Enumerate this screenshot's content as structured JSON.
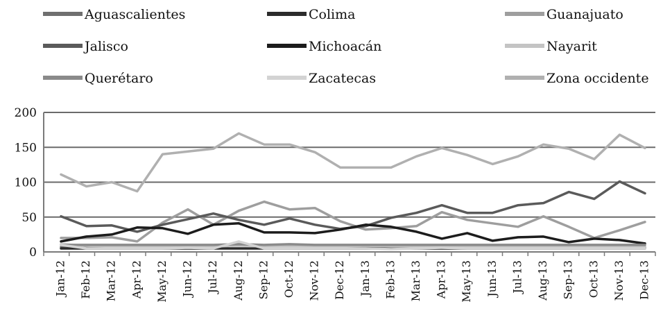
{
  "chart_data": {
    "type": "line",
    "title": "",
    "xlabel": "",
    "ylabel": "",
    "ylim": [
      0,
      200
    ],
    "yticks": [
      0,
      50,
      100,
      150,
      200
    ],
    "ytick_labels": [
      "0",
      "50",
      "100",
      "150",
      "200"
    ],
    "grid": "horizontal",
    "legend_position": "top",
    "categories": [
      "Jan-12",
      "Feb-12",
      "Mar-12",
      "Apr-12",
      "May-12",
      "Jun-12",
      "Jul-12",
      "Aug-12",
      "Sep-12",
      "Oct-12",
      "Nov-12",
      "Dec-12",
      "Jan-13",
      "Feb-13",
      "Mar-13",
      "Apr-13",
      "May-13",
      "Jun-13",
      "Jul-13",
      "Aug-13",
      "Sep-13",
      "Oct-13",
      "Nov-13",
      "Dec-13"
    ],
    "series": [
      {
        "name": "Aguascalientes",
        "color": "#6f6f6f",
        "values": [
          7,
          6,
          6,
          6,
          7,
          7,
          6,
          10,
          7,
          7,
          6,
          7,
          6,
          5,
          6,
          7,
          6,
          6,
          6,
          7,
          7,
          7,
          6,
          7
        ]
      },
      {
        "name": "Colima",
        "color": "#2b2b2b",
        "values": [
          5,
          5,
          5,
          5,
          5,
          5,
          5,
          5,
          5,
          5,
          5,
          5,
          5,
          5,
          5,
          5,
          5,
          5,
          5,
          5,
          5,
          5,
          5,
          5
        ]
      },
      {
        "name": "Guanajuato",
        "color": "#9e9e9e",
        "values": [
          20,
          20,
          21,
          15,
          42,
          61,
          39,
          59,
          72,
          61,
          63,
          44,
          32,
          34,
          37,
          57,
          46,
          41,
          36,
          51,
          36,
          20,
          31,
          43
        ]
      },
      {
        "name": "Jalisco",
        "color": "#5a5a5a",
        "values": [
          51,
          37,
          38,
          29,
          39,
          47,
          55,
          46,
          39,
          48,
          39,
          33,
          37,
          49,
          56,
          67,
          56,
          56,
          67,
          70,
          86,
          76,
          101,
          84
        ]
      },
      {
        "name": "Michoacán",
        "color": "#1c1c1c",
        "values": [
          15,
          22,
          25,
          35,
          34,
          26,
          39,
          41,
          28,
          28,
          27,
          32,
          39,
          36,
          29,
          19,
          27,
          16,
          21,
          22,
          14,
          19,
          17,
          12
        ]
      },
      {
        "name": "Nayarit",
        "color": "#c4c4c4",
        "values": [
          11,
          9,
          8,
          7,
          8,
          8,
          8,
          9,
          8,
          8,
          8,
          8,
          9,
          8,
          8,
          8,
          8,
          8,
          8,
          8,
          8,
          8,
          8,
          8
        ]
      },
      {
        "name": "Querétaro",
        "color": "#8a8a8a",
        "values": [
          10,
          10,
          10,
          10,
          10,
          10,
          10,
          11,
          10,
          11,
          10,
          10,
          10,
          10,
          10,
          10,
          10,
          10,
          10,
          10,
          10,
          10,
          10,
          10
        ]
      },
      {
        "name": "Zacatecas",
        "color": "#d3d3d3",
        "values": [
          10,
          5,
          5,
          5,
          5,
          6,
          5,
          15,
          5,
          5,
          5,
          5,
          5,
          4,
          5,
          6,
          5,
          5,
          5,
          5,
          5,
          5,
          5,
          5
        ]
      },
      {
        "name": "Zona occidente",
        "color": "#b0b0b0",
        "values": [
          111,
          94,
          100,
          87,
          140,
          144,
          148,
          170,
          154,
          154,
          143,
          121,
          121,
          121,
          137,
          149,
          139,
          126,
          137,
          154,
          148,
          133,
          168,
          149
        ]
      }
    ]
  }
}
